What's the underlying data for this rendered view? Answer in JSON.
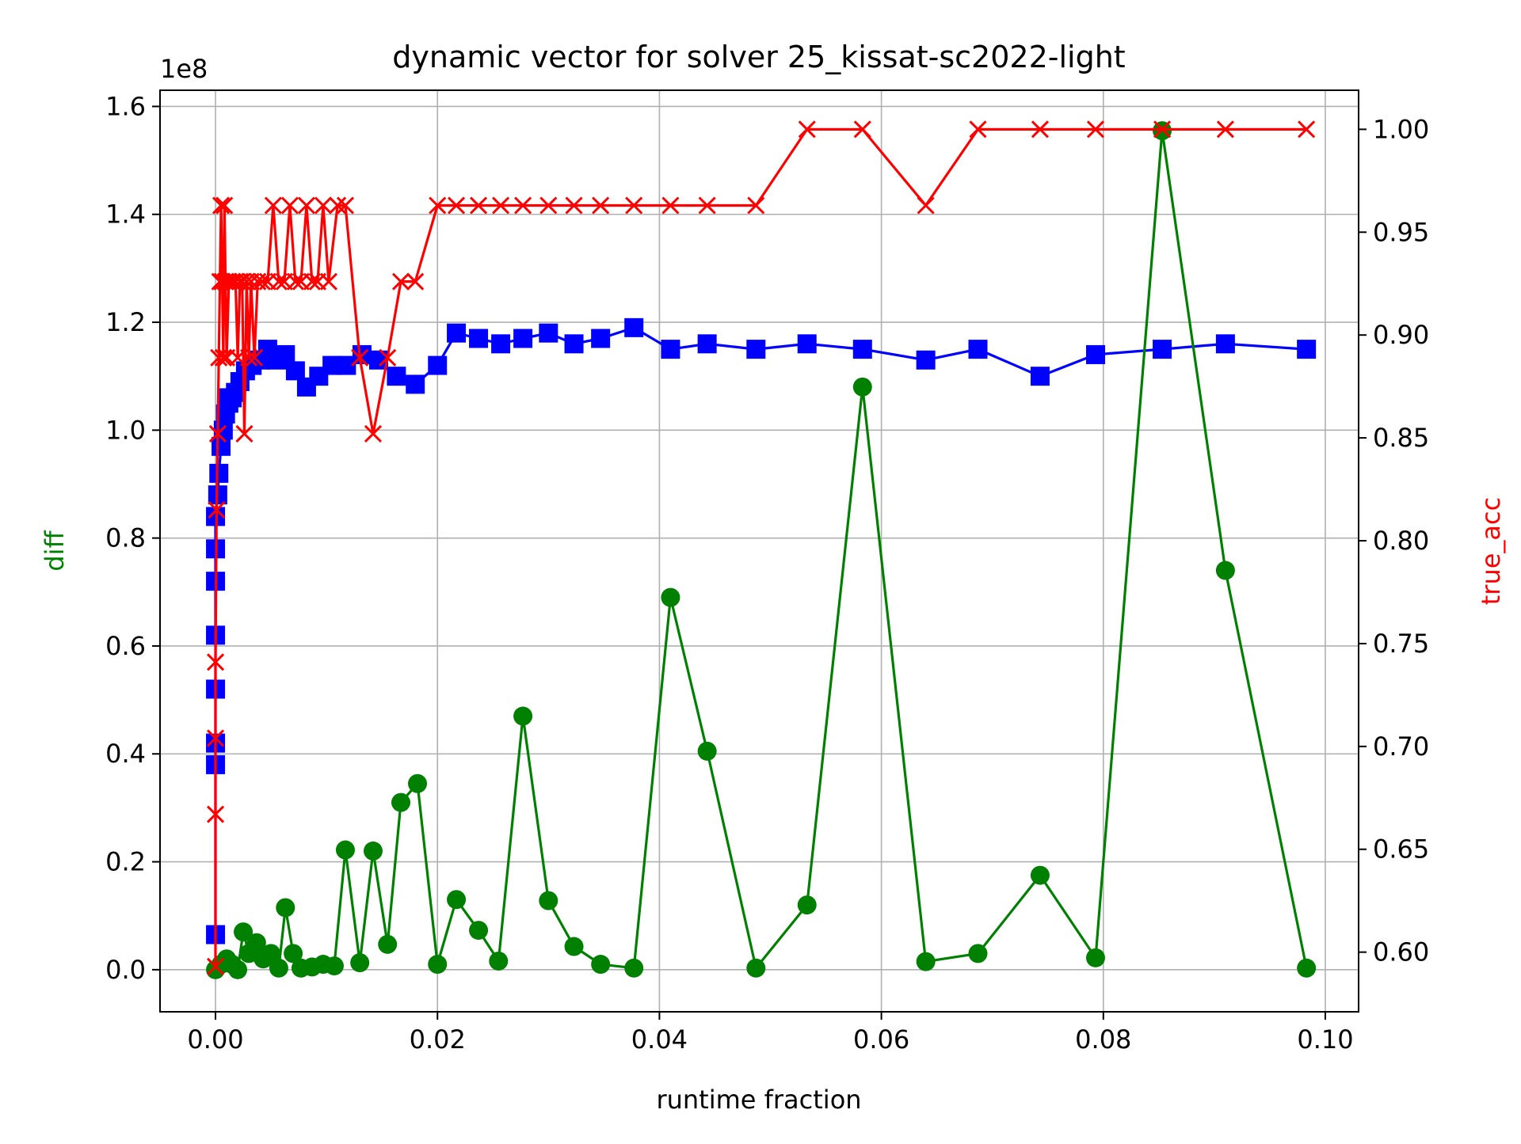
{
  "chart_data": {
    "type": "line",
    "title": "dynamic vector for solver 25_kissat-sc2022-light",
    "xlabel": "runtime fraction",
    "ylabel_left": "diff",
    "ylabel_right": "true_acc",
    "left_axis_multiplier": "1e8",
    "xlim": [
      -0.005,
      0.103
    ],
    "ylim_left": [
      -0.078,
      1.63
    ],
    "ylim_right": [
      0.571,
      1.019
    ],
    "x_ticks": [
      0.0,
      0.02,
      0.04,
      0.06,
      0.08,
      0.1
    ],
    "x_tick_labels": [
      "0.00",
      "0.02",
      "0.04",
      "0.06",
      "0.08",
      "0.10"
    ],
    "y_left_ticks": [
      0.0,
      0.2,
      0.4,
      0.6,
      0.8,
      1.0,
      1.2,
      1.4,
      1.6
    ],
    "y_left_tick_labels": [
      "0.0",
      "0.2",
      "0.4",
      "0.6",
      "0.8",
      "1.0",
      "1.2",
      "1.4",
      "1.6"
    ],
    "y_right_ticks": [
      0.6,
      0.65,
      0.7,
      0.75,
      0.8,
      0.85,
      0.9,
      0.95,
      1.0
    ],
    "y_right_tick_labels": [
      "0.60",
      "0.65",
      "0.70",
      "0.75",
      "0.80",
      "0.85",
      "0.90",
      "0.95",
      "1.00"
    ],
    "grid": true,
    "colors": {
      "diff": "#008000",
      "blue_series": "#0000ff",
      "true_acc": "#ff0000",
      "label_left": "#008000",
      "label_right": "#ff0000",
      "grid": "#b0b0b0"
    },
    "series": [
      {
        "axis": "left",
        "color": "#0000ff",
        "marker": "square",
        "x": [
          0.0,
          0.0,
          0.0,
          0.0,
          0.0,
          0.0,
          0.0,
          0.0,
          0.0002,
          0.0003,
          0.0005,
          0.0007,
          0.0009,
          0.001,
          0.0012,
          0.0015,
          0.0018,
          0.0022,
          0.0027,
          0.0033,
          0.004,
          0.0047,
          0.0055,
          0.0063,
          0.0072,
          0.0082,
          0.0093,
          0.0105,
          0.0118,
          0.0132,
          0.0147,
          0.0163,
          0.018,
          0.02,
          0.0217,
          0.0237,
          0.0257,
          0.0277,
          0.03,
          0.0323,
          0.0347,
          0.0377,
          0.041,
          0.0443,
          0.0487,
          0.0533,
          0.0583,
          0.064,
          0.0687,
          0.0743,
          0.0793,
          0.0853,
          0.091,
          0.0983
        ],
        "y": [
          0.065,
          0.38,
          0.42,
          0.52,
          0.62,
          0.72,
          0.78,
          0.84,
          0.88,
          0.92,
          0.97,
          1.0,
          1.03,
          1.06,
          1.05,
          1.06,
          1.07,
          1.09,
          1.11,
          1.12,
          1.13,
          1.15,
          1.13,
          1.14,
          1.11,
          1.08,
          1.1,
          1.12,
          1.12,
          1.14,
          1.13,
          1.1,
          1.085,
          1.12,
          1.18,
          1.17,
          1.16,
          1.17,
          1.18,
          1.16,
          1.17,
          1.19,
          1.15,
          1.16,
          1.15,
          1.16,
          1.15,
          1.13,
          1.15,
          1.1,
          1.14,
          1.15,
          1.16,
          1.15
        ]
      },
      {
        "name": "diff",
        "axis": "left",
        "color": "#008000",
        "marker": "circle",
        "x": [
          0.0,
          0.0005,
          0.001,
          0.0015,
          0.002,
          0.0025,
          0.003,
          0.0037,
          0.0043,
          0.005,
          0.0057,
          0.0063,
          0.007,
          0.0077,
          0.0087,
          0.0097,
          0.0107,
          0.0117,
          0.013,
          0.0142,
          0.0155,
          0.0167,
          0.0182,
          0.02,
          0.0217,
          0.0237,
          0.0255,
          0.0277,
          0.03,
          0.0323,
          0.0347,
          0.0377,
          0.041,
          0.0443,
          0.0487,
          0.0533,
          0.0583,
          0.064,
          0.0687,
          0.0743,
          0.0793,
          0.0853,
          0.091,
          0.0983
        ],
        "y": [
          0.0,
          0.01,
          0.02,
          0.01,
          0.0,
          0.07,
          0.03,
          0.05,
          0.02,
          0.03,
          0.003,
          0.115,
          0.03,
          0.003,
          0.005,
          0.01,
          0.007,
          0.222,
          0.013,
          0.22,
          0.047,
          0.31,
          0.345,
          0.01,
          0.13,
          0.073,
          0.016,
          0.47,
          0.128,
          0.043,
          0.01,
          0.003,
          0.69,
          0.405,
          0.003,
          0.12,
          1.08,
          0.015,
          0.03,
          0.175,
          0.022,
          1.555,
          0.74,
          0.003
        ]
      },
      {
        "name": "true_acc",
        "axis": "right",
        "color": "#ff0000",
        "marker": "x",
        "x": [
          0.0,
          0.0,
          0.0,
          0.0,
          0.0001,
          0.0002,
          0.0003,
          0.0004,
          0.0005,
          0.0006,
          0.0007,
          0.0008,
          0.0009,
          0.001,
          0.0012,
          0.0015,
          0.0018,
          0.002,
          0.0022,
          0.0024,
          0.0026,
          0.0028,
          0.003,
          0.0032,
          0.0035,
          0.0038,
          0.0042,
          0.0047,
          0.0052,
          0.0057,
          0.0062,
          0.0067,
          0.0072,
          0.0077,
          0.0082,
          0.0087,
          0.0092,
          0.0097,
          0.0102,
          0.011,
          0.0117,
          0.013,
          0.0142,
          0.0155,
          0.0167,
          0.018,
          0.02,
          0.0217,
          0.0237,
          0.0257,
          0.0277,
          0.03,
          0.0323,
          0.0347,
          0.0377,
          0.041,
          0.0443,
          0.0487,
          0.0533,
          0.0583,
          0.064,
          0.0687,
          0.0743,
          0.0793,
          0.0853,
          0.091,
          0.0983
        ],
        "y": [
          0.593,
          0.667,
          0.704,
          0.741,
          0.815,
          0.852,
          0.889,
          0.926,
          0.963,
          0.926,
          0.889,
          0.963,
          0.926,
          0.889,
          0.926,
          0.926,
          0.926,
          0.889,
          0.926,
          0.926,
          0.852,
          0.926,
          0.889,
          0.926,
          0.889,
          0.926,
          0.926,
          0.926,
          0.963,
          0.926,
          0.926,
          0.963,
          0.926,
          0.926,
          0.963,
          0.926,
          0.926,
          0.963,
          0.926,
          0.963,
          0.963,
          0.889,
          0.852,
          0.889,
          0.926,
          0.926,
          0.963,
          0.963,
          0.963,
          0.963,
          0.963,
          0.963,
          0.963,
          0.963,
          0.963,
          0.963,
          0.963,
          0.963,
          1.0,
          1.0,
          0.963,
          1.0,
          1.0,
          1.0,
          1.0,
          1.0,
          1.0
        ]
      }
    ]
  }
}
